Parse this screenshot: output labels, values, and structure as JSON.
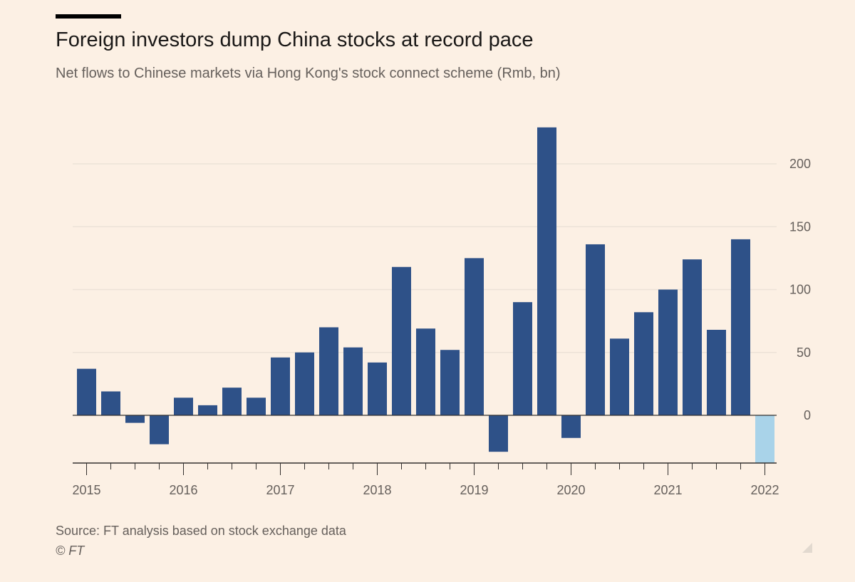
{
  "header": {
    "title": "Foreign investors dump China stocks at record pace",
    "subtitle": "Net flows to Chinese markets via Hong Kong's stock connect scheme (Rmb, bn)"
  },
  "footer": {
    "source": "Source: FT analysis based on stock exchange data",
    "credit": "© FT"
  },
  "colors": {
    "background": "#fcf0e4",
    "bar": "#2e5188",
    "bar_highlight": "#a9d3e9",
    "grid": "#ece2d7",
    "axis": "#33302e",
    "text": "#66605c"
  },
  "chart_data": {
    "type": "bar",
    "title": "Foreign investors dump China stocks at record pace",
    "subtitle": "Net flows to Chinese markets via Hong Kong's stock connect scheme (Rmb, bn)",
    "xlabel": "",
    "ylabel": "",
    "ylim": [
      -40,
      230
    ],
    "yticks": [
      0,
      50,
      100,
      150,
      200
    ],
    "xticks": [
      "2015",
      "2016",
      "2017",
      "2018",
      "2019",
      "2020",
      "2021",
      "2022"
    ],
    "grid": true,
    "y_axis_side": "right",
    "categories": [
      "2015 Q1",
      "2015 Q2",
      "2015 Q3",
      "2015 Q4",
      "2016 Q1",
      "2016 Q2",
      "2016 Q3",
      "2016 Q4",
      "2017 Q1",
      "2017 Q2",
      "2017 Q3",
      "2017 Q4",
      "2018 Q1",
      "2018 Q2",
      "2018 Q3",
      "2018 Q4",
      "2019 Q1",
      "2019 Q2",
      "2019 Q3",
      "2019 Q4",
      "2020 Q1",
      "2020 Q2",
      "2020 Q3",
      "2020 Q4",
      "2021 Q1",
      "2021 Q2",
      "2021 Q3",
      "2021 Q4",
      "2022 Q1"
    ],
    "values": [
      37,
      19,
      -6,
      -23,
      14,
      8,
      22,
      14,
      46,
      50,
      70,
      54,
      42,
      118,
      69,
      52,
      125,
      -29,
      90,
      229,
      -18,
      136,
      61,
      82,
      100,
      124,
      68,
      140,
      -38
    ],
    "highlight_index": 28
  }
}
